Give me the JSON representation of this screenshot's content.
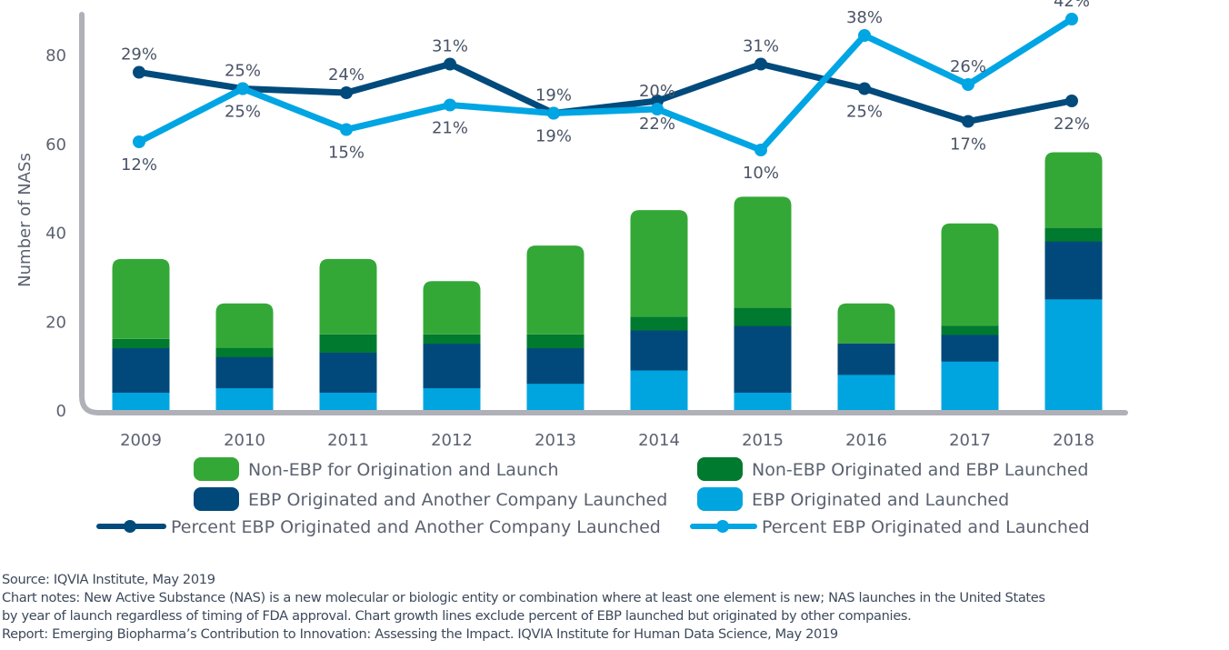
{
  "chart_data": {
    "type": "bar",
    "stacked": true,
    "title": "",
    "xlabel": "",
    "ylabel": "Number of NASs",
    "ylim": [
      0,
      80
    ],
    "yticks": [
      "0",
      "20",
      "40",
      "60",
      "80"
    ],
    "ytick_values": [
      0,
      20,
      40,
      60,
      80
    ],
    "grid": false,
    "legend_placement": "bottom",
    "categories": [
      "2009",
      "2010",
      "2011",
      "2012",
      "2013",
      "2014",
      "2015",
      "2016",
      "2017",
      "2018"
    ],
    "series": [
      {
        "name": "EBP Originated and Launched",
        "color": "#00a5e0",
        "values": [
          4,
          5,
          4,
          5,
          6,
          9,
          4,
          8,
          11,
          25
        ]
      },
      {
        "name": "EBP Originated and Another Company Launched",
        "color": "#00497a",
        "values": [
          10,
          7,
          9,
          10,
          8,
          9,
          15,
          7,
          6,
          13
        ]
      },
      {
        "name": "Non-EBP Originated and EBP Launched",
        "color": "#007a2f",
        "values": [
          2,
          2,
          4,
          2,
          3,
          3,
          4,
          0,
          2,
          3
        ]
      },
      {
        "name": "Non-EBP for Origination and Launch",
        "color": "#34a837",
        "values": [
          18,
          10,
          17,
          12,
          20,
          24,
          25,
          9,
          23,
          17
        ]
      }
    ],
    "lines": [
      {
        "name": "Percent EBP Originated and Another Company Launched",
        "color": "#004a7c",
        "unit": "%",
        "values": [
          29,
          25,
          24,
          31,
          19,
          22,
          31,
          25,
          17,
          22
        ]
      },
      {
        "name": "Percent EBP Originated and Launched",
        "color": "#00a5e3",
        "unit": "%",
        "values": [
          12,
          25,
          15,
          21,
          19,
          20,
          10,
          38,
          26,
          42
        ]
      }
    ]
  },
  "legend": {
    "non_ebp": "Non-EBP for Origination and Launch",
    "non_ebp_orig_ebp_launched": "Non-EBP Originated and EBP Launched",
    "ebp_orig_other_launched": "EBP Originated and Another Company Launched",
    "ebp_orig_launched": "EBP Originated and Launched",
    "pct_other": "Percent EBP Originated and Another Company Launched",
    "pct_launched": "Percent EBP Originated and Launched"
  },
  "axis_color": "#b0b0b8",
  "footer": {
    "source": "Source: IQVIA Institute, May 2019",
    "notes_1": "Chart notes: New Active Substance (NAS) is a new molecular or biologic entity or combination where at least one element is new; NAS launches in the United States",
    "notes_2": "by year of launch regardless of timing of FDA approval. Chart growth lines exclude percent of EBP launched but originated by other companies.",
    "report": "Report: Emerging Biopharma’s Contribution to Innovation: Assessing the Impact. IQVIA Institute for Human Data Science, May 2019"
  }
}
